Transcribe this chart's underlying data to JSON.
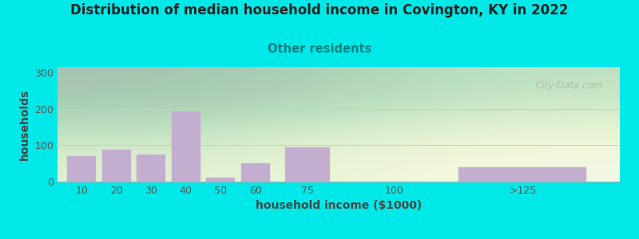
{
  "title": "Distribution of median household income in Covington, KY in 2022",
  "subtitle": "Other residents",
  "xlabel": "household income ($1000)",
  "ylabel": "households",
  "bar_centers": [
    10,
    20,
    30,
    40,
    50,
    60,
    75,
    100,
    137
  ],
  "bar_widths": [
    9,
    9,
    9,
    9,
    9,
    9,
    14,
    9,
    40
  ],
  "bar_heights": [
    70,
    87,
    75,
    193,
    10,
    50,
    93,
    0,
    40
  ],
  "bar_color": "#c4aed0",
  "bar_edgecolor": "#c4aed0",
  "background_outer": "#00e8e8",
  "background_inner": "#eef5e8",
  "yticks": [
    0,
    100,
    200,
    300
  ],
  "ylim": [
    0,
    315
  ],
  "xlim": [
    3,
    165
  ],
  "xtick_positions": [
    10,
    20,
    30,
    40,
    50,
    60,
    75,
    100,
    137
  ],
  "xtick_labels": [
    "10",
    "20",
    "30",
    "40",
    "50",
    "60",
    "75",
    "100",
    ">125"
  ],
  "title_fontsize": 12,
  "subtitle_fontsize": 10.5,
  "subtitle_color": "#008080",
  "axis_label_fontsize": 10,
  "tick_fontsize": 9,
  "watermark_text": "City-Data.com"
}
